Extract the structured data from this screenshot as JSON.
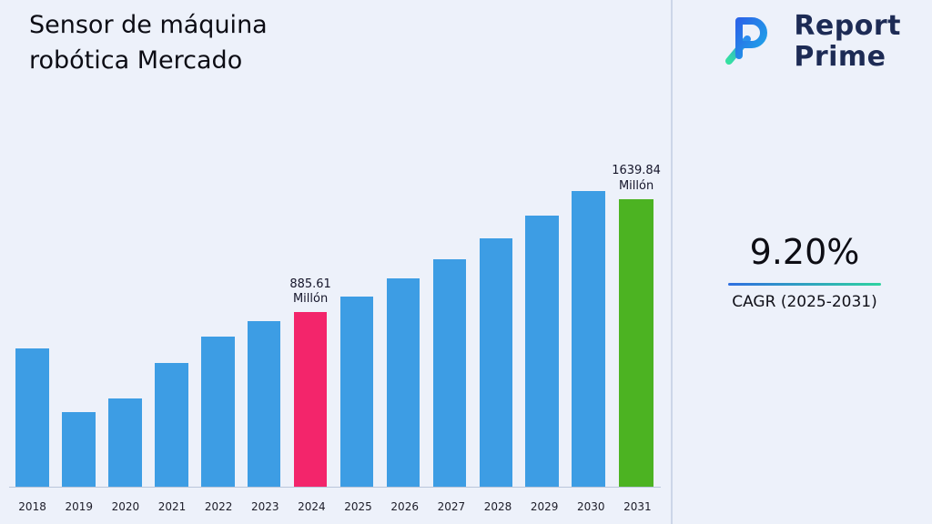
{
  "title": "Sensor de máquina\nrobótica Mercado",
  "logo": {
    "line1": "Report",
    "line2": "Prime"
  },
  "cagr": {
    "value": "9.20%",
    "label": "CAGR (2025-2031)"
  },
  "chart_data": {
    "type": "bar",
    "title": "Sensor de máquina robótica Mercado",
    "categories": [
      "2018",
      "2019",
      "2020",
      "2021",
      "2022",
      "2023",
      "2024",
      "2025",
      "2026",
      "2027",
      "2028",
      "2029",
      "2030",
      "2031"
    ],
    "values": [
      700,
      380,
      450,
      630,
      760,
      840,
      885.61,
      967,
      1056,
      1153,
      1259,
      1375,
      1502,
      1639.84
    ],
    "unit": "Millón",
    "ylim": [
      0,
      1700
    ],
    "grid": false,
    "legend": "none",
    "bar_colors": {
      "default": "#3d9de4",
      "2024": "#f3256b",
      "2031": "#4cb322"
    },
    "annotations": {
      "2024": "885.61\nMillón",
      "2031": "1639.84\nMillón"
    }
  },
  "colors": {
    "background": "#edf1fa",
    "divider": "#ccd6e8",
    "accent_blue": "#2f6fe0",
    "accent_green": "#2fd3a0",
    "logo_navy": "#1d2b55"
  }
}
